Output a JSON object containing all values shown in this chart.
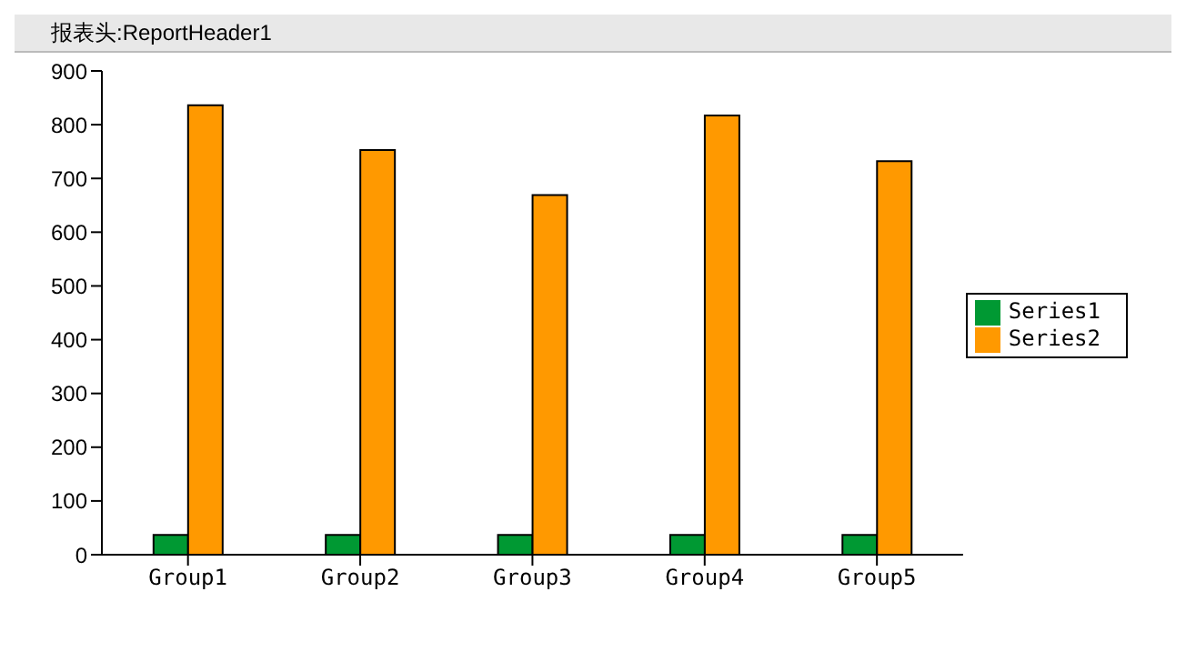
{
  "chart_data": {
    "type": "bar",
    "title": "报表头:ReportHeader1",
    "categories": [
      "Group1",
      "Group2",
      "Group3",
      "Group4",
      "Group5"
    ],
    "series": [
      {
        "name": "Series1",
        "color": "#009933",
        "values": [
          37,
          37,
          37,
          37,
          37
        ]
      },
      {
        "name": "Series2",
        "color": "#ff9900",
        "values": [
          836,
          753,
          669,
          817,
          732
        ]
      }
    ],
    "ylim": [
      0,
      900
    ],
    "yticks": [
      0,
      100,
      200,
      300,
      400,
      500,
      600,
      700,
      800,
      900
    ],
    "legend": "right"
  }
}
